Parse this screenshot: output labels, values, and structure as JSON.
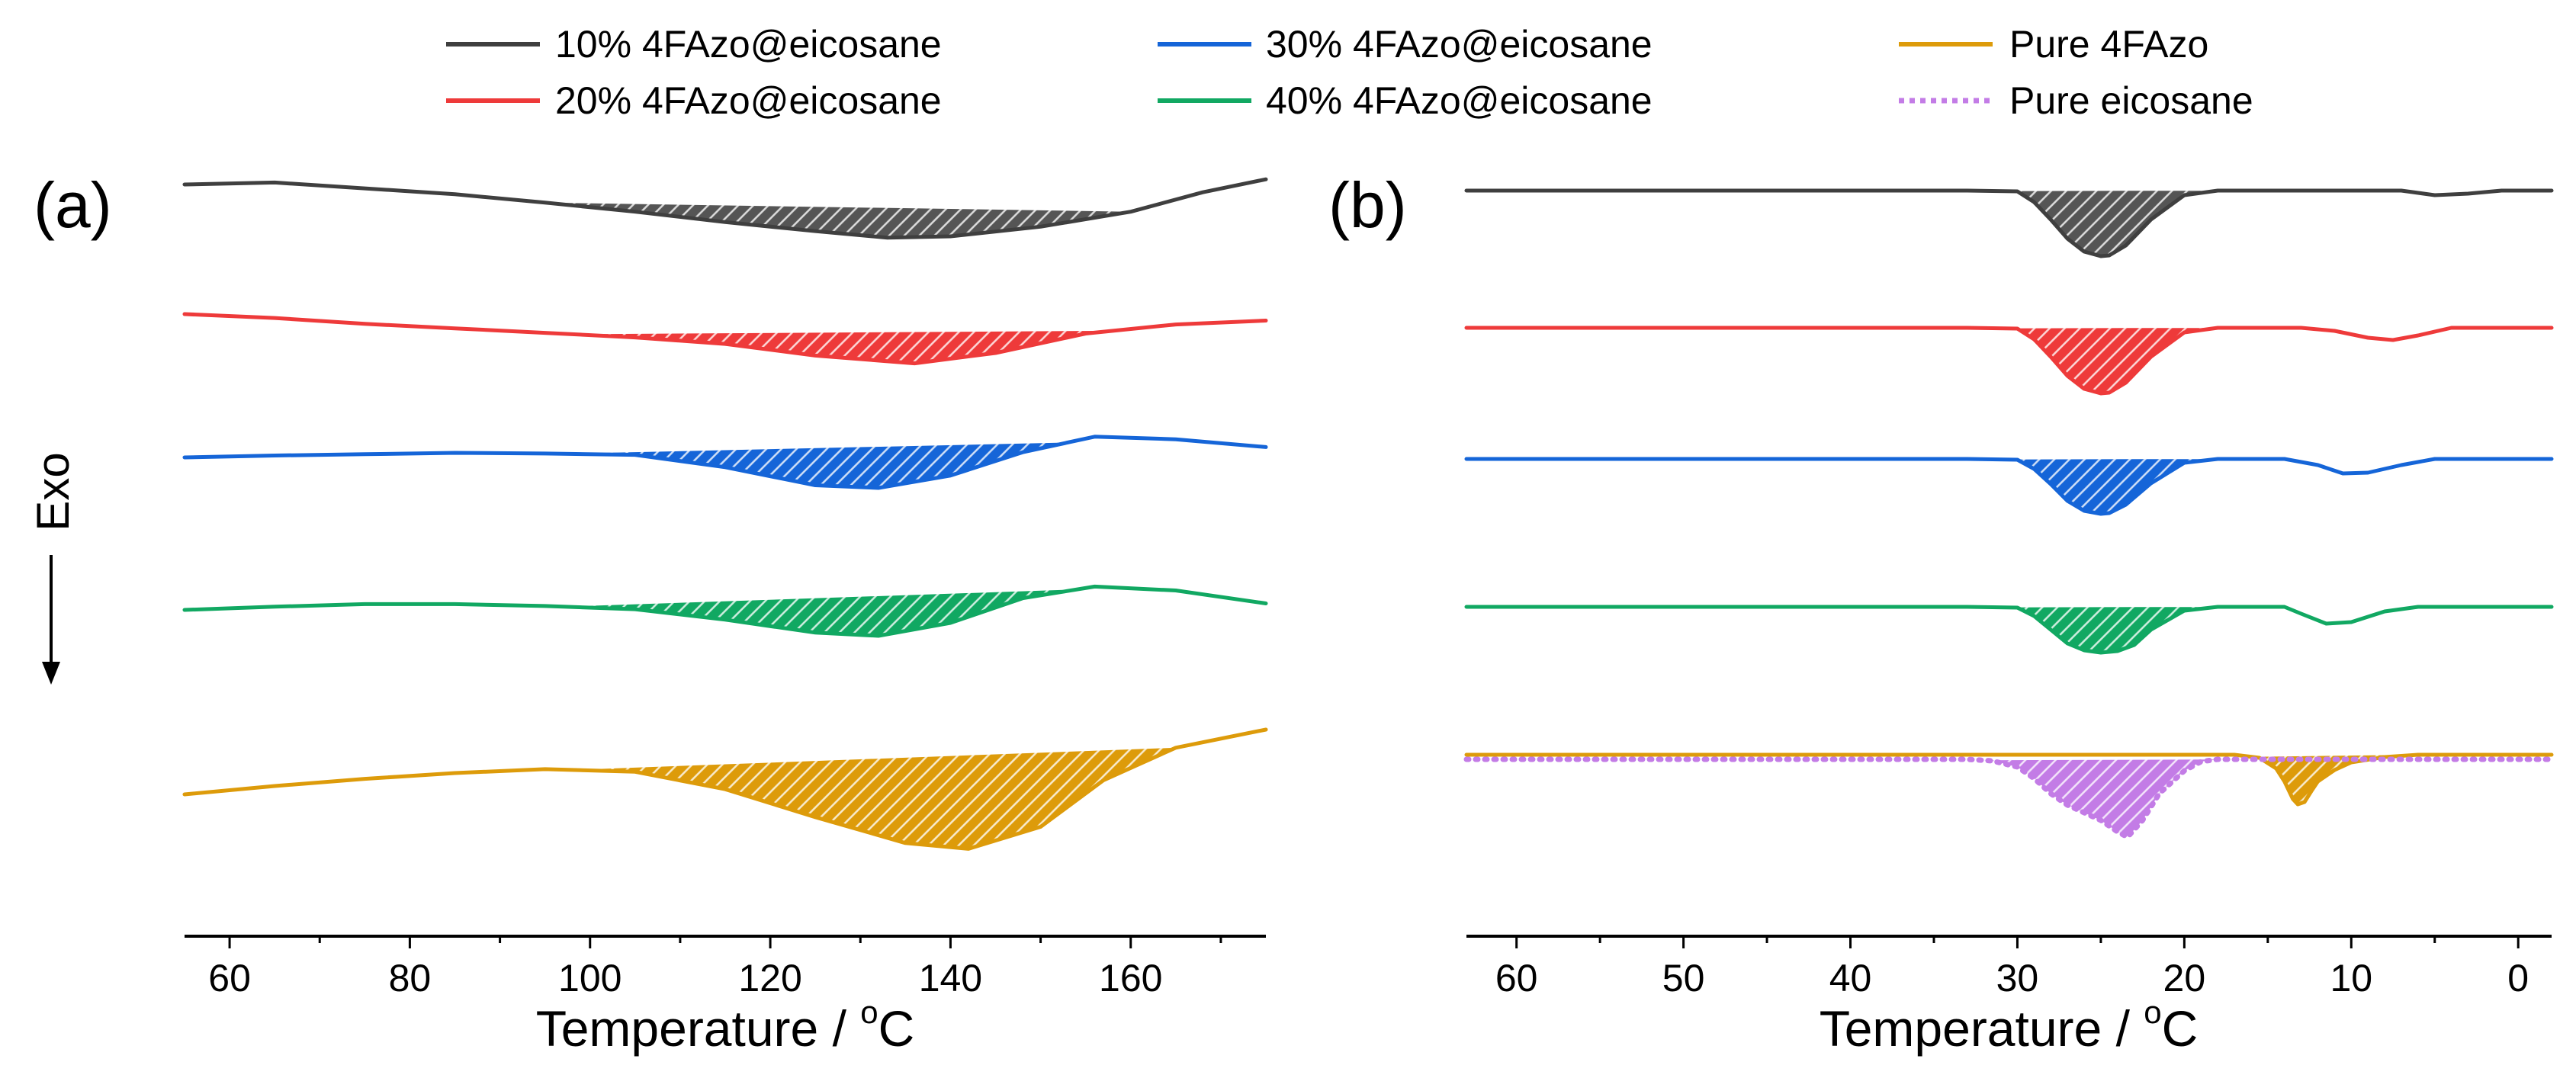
{
  "legend": {
    "entries": [
      {
        "key": "s10",
        "label": "10% 4FAzo@eicosane",
        "color": "#3f3f3f",
        "dash": false
      },
      {
        "key": "s20",
        "label": "20% 4FAzo@eicosane",
        "color": "#ee3a3a",
        "dash": false
      },
      {
        "key": "s30",
        "label": "30% 4FAzo@eicosane",
        "color": "#1565d8",
        "dash": false
      },
      {
        "key": "s40",
        "label": "40% 4FAzo@eicosane",
        "color": "#11a862",
        "dash": false
      },
      {
        "key": "pure_azo",
        "label": "Pure 4FAzo",
        "color": "#dd9b0a",
        "dash": false
      },
      {
        "key": "pure_eic",
        "label": "Pure eicosane",
        "color": "#c37ce6",
        "dash": true
      }
    ]
  },
  "y_axis_label": "Exo",
  "chart_data": [
    {
      "type": "line",
      "panel_label": "(a)",
      "xlabel": "Temperature / ",
      "xlabel_sup": "o",
      "xlabel_unit": "C",
      "ylabel": "Exo",
      "xlim": [
        55,
        175
      ],
      "x_ticks": [
        60,
        80,
        100,
        120,
        140,
        160
      ],
      "x_tick_labels": [
        "60",
        "80",
        "100",
        "120",
        "140",
        "160"
      ],
      "series": [
        {
          "name": "10% 4FAzo@eicosane",
          "color": "#3f3f3f",
          "x": [
            55,
            65,
            75,
            85,
            95,
            105,
            115,
            125,
            133,
            140,
            150,
            160,
            168,
            175
          ],
          "y": [
            0,
            0.3,
            -0.6,
            -1.5,
            -2.8,
            -4.2,
            -5.8,
            -7.2,
            -8.2,
            -8.0,
            -6.5,
            -4.2,
            -1.2,
            0.8
          ],
          "baseline": [
            95,
            160
          ],
          "fill_color": "#555555"
        },
        {
          "name": "20% 4FAzo@eicosane",
          "color": "#ee3a3a",
          "x": [
            55,
            65,
            75,
            85,
            95,
            105,
            115,
            125,
            136,
            145,
            155,
            165,
            175
          ],
          "y": [
            0,
            -0.6,
            -1.5,
            -2.2,
            -2.9,
            -3.6,
            -4.6,
            -6.4,
            -7.6,
            -6.0,
            -3.0,
            -1.6,
            -1.0
          ],
          "baseline": [
            98,
            158
          ],
          "fill_color": "#ee3a3a"
        },
        {
          "name": "30% 4FAzo@eicosane",
          "color": "#1565d8",
          "x": [
            55,
            65,
            75,
            85,
            95,
            105,
            115,
            125,
            132,
            140,
            148,
            156,
            165,
            175
          ],
          "y": [
            0,
            0.3,
            0.5,
            0.7,
            0.6,
            0.4,
            -1.5,
            -4.3,
            -4.7,
            -2.8,
            0.8,
            3.2,
            2.8,
            1.6
          ],
          "baseline": [
            97,
            153
          ],
          "fill_color": "#1565d8"
        },
        {
          "name": "40% 4FAzo@eicosane",
          "color": "#11a862",
          "x": [
            55,
            65,
            75,
            85,
            95,
            105,
            115,
            125,
            132,
            140,
            148,
            156,
            165,
            175
          ],
          "y": [
            0,
            0.5,
            0.9,
            0.9,
            0.6,
            0.1,
            -1.5,
            -3.5,
            -4.0,
            -2.0,
            1.8,
            3.6,
            3.0,
            1.0
          ],
          "baseline": [
            97,
            154
          ],
          "fill_color": "#11a862"
        },
        {
          "name": "Pure 4FAzo",
          "color": "#dd9b0a",
          "x": [
            55,
            65,
            75,
            85,
            95,
            105,
            115,
            125,
            135,
            142,
            150,
            157,
            165,
            175
          ],
          "y": [
            0,
            1.3,
            2.4,
            3.3,
            3.9,
            3.5,
            0.8,
            -3.5,
            -7.5,
            -8.4,
            -5.0,
            2.2,
            7.2,
            10.0
          ],
          "baseline": [
            98,
            165
          ],
          "fill_color": "#dd9b0a"
        }
      ]
    },
    {
      "type": "line",
      "panel_label": "(b)",
      "xlabel": "Temperature / ",
      "xlabel_sup": "o",
      "xlabel_unit": "C",
      "xlim": [
        63,
        -2
      ],
      "x_ticks": [
        60,
        50,
        40,
        30,
        20,
        10,
        0
      ],
      "x_tick_labels": [
        "60",
        "50",
        "40",
        "30",
        "20",
        "10",
        "0"
      ],
      "series": [
        {
          "name": "10% 4FAzo@eicosane",
          "color": "#3f3f3f",
          "x": [
            63,
            33,
            30,
            29,
            28,
            27,
            26,
            25,
            24.5,
            23.5,
            22,
            20,
            18,
            13,
            7,
            5,
            3,
            1,
            -2
          ],
          "y": [
            0,
            0,
            -0.1,
            -1.5,
            -3.8,
            -6.3,
            -8.0,
            -8.6,
            -8.5,
            -7.2,
            -3.8,
            -0.6,
            0,
            0,
            0,
            -0.6,
            -0.4,
            0,
            0
          ],
          "baseline": [
            31,
            17.5
          ],
          "fill_color": "#555555"
        },
        {
          "name": "20% 4FAzo@eicosane",
          "color": "#ee3a3a",
          "x": [
            63,
            33,
            30,
            29,
            28,
            27,
            26,
            25,
            24.5,
            23.5,
            22,
            20,
            18,
            13,
            11,
            9,
            7.5,
            6,
            4,
            -2
          ],
          "y": [
            0,
            0,
            -0.1,
            -1.5,
            -3.8,
            -6.3,
            -8.0,
            -8.6,
            -8.5,
            -7.2,
            -3.8,
            -0.6,
            0,
            0,
            -0.4,
            -1.3,
            -1.6,
            -1.0,
            0,
            0
          ],
          "baseline": [
            31,
            17.5
          ],
          "fill_color": "#ee3a3a"
        },
        {
          "name": "30% 4FAzo@eicosane",
          "color": "#1565d8",
          "x": [
            63,
            33,
            30,
            29,
            28,
            27,
            26,
            25,
            24.5,
            23.5,
            22,
            20,
            18,
            14,
            12,
            10.5,
            9,
            7,
            5,
            -2
          ],
          "y": [
            0,
            0,
            -0.1,
            -1.3,
            -3.3,
            -5.5,
            -6.8,
            -7.2,
            -7.1,
            -6.0,
            -3.2,
            -0.5,
            0,
            0,
            -0.8,
            -1.9,
            -1.8,
            -0.8,
            0,
            0
          ],
          "baseline": [
            31,
            17.5
          ],
          "fill_color": "#1565d8"
        },
        {
          "name": "40% 4FAzo@eicosane",
          "color": "#11a862",
          "x": [
            63,
            33,
            30,
            29,
            28,
            27,
            26,
            25,
            24,
            23,
            22,
            20,
            18,
            14,
            13,
            11.5,
            10,
            8,
            6,
            -2
          ],
          "y": [
            0,
            0,
            -0.1,
            -1.2,
            -3.0,
            -4.8,
            -5.7,
            -6.0,
            -5.8,
            -5.0,
            -3.0,
            -0.5,
            0,
            0,
            -0.9,
            -2.2,
            -2.0,
            -0.6,
            0,
            0
          ],
          "baseline": [
            31,
            17.5
          ],
          "fill_color": "#11a862"
        },
        {
          "name": "Pure 4FAzo",
          "color": "#dd9b0a",
          "x": [
            63,
            17,
            15.5,
            14.5,
            14,
            13.5,
            13.2,
            12.8,
            12.4,
            12,
            11,
            10,
            8,
            6,
            -2
          ],
          "y": [
            0,
            0,
            -0.4,
            -1.8,
            -3.5,
            -5.8,
            -6.5,
            -6.2,
            -4.8,
            -3.5,
            -2.0,
            -1.0,
            -0.3,
            0,
            0
          ],
          "baseline": [
            16,
            6
          ],
          "fill_color": "#dd9b0a"
        },
        {
          "name": "Pure eicosane",
          "color": "#c37ce6",
          "dash": true,
          "x": [
            63,
            33,
            31.5,
            30,
            29,
            28,
            27,
            26,
            25,
            24,
            23.4,
            22.5,
            21.5,
            20,
            19,
            18,
            16.5,
            15,
            -2
          ],
          "y": [
            0,
            0,
            -0.2,
            -1.0,
            -2.5,
            -4.5,
            -6.0,
            -7.0,
            -8.0,
            -9.5,
            -10.2,
            -8.0,
            -4.5,
            -1.5,
            -0.3,
            0,
            0,
            0,
            0
          ],
          "baseline": [
            32,
            16
          ],
          "fill_color": "#c37ce6"
        }
      ]
    }
  ]
}
